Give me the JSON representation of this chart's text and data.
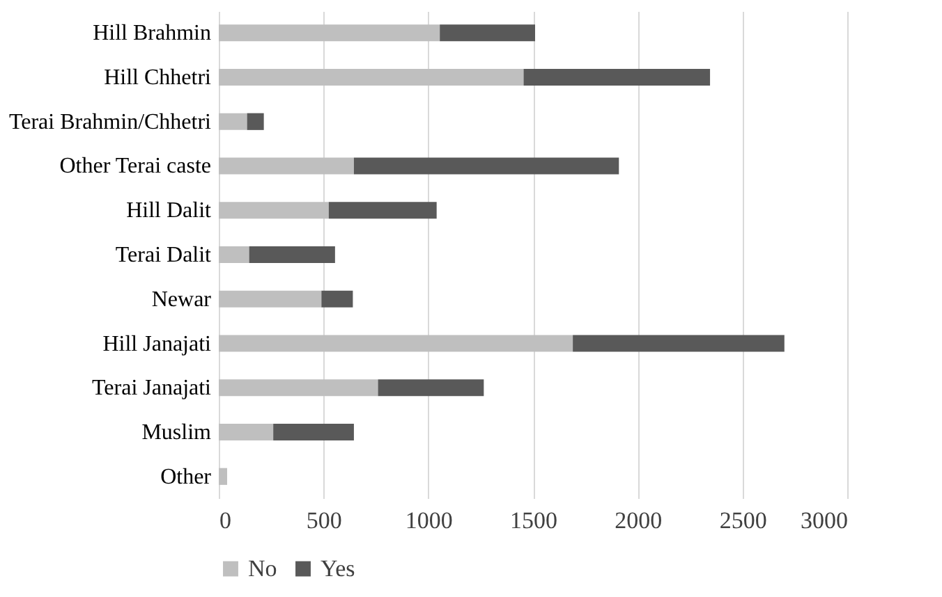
{
  "chart_data": {
    "type": "bar",
    "orientation": "horizontal",
    "stacked": true,
    "categories": [
      "Hill Brahmin",
      "Hill Chhetri",
      "Terai Brahmin/Chhetri",
      "Other Terai caste",
      "Hill Dalit",
      "Terai Dalit",
      "Newar",
      "Hill Janajati",
      "Terai Janajati",
      "Muslim",
      "Other"
    ],
    "series": [
      {
        "name": "No",
        "color": "#bfbfbf",
        "values": [
          1055,
          1455,
          135,
          645,
          525,
          145,
          490,
          1690,
          760,
          260,
          40
        ]
      },
      {
        "name": "Yes",
        "color": "#595959",
        "values": [
          455,
          890,
          80,
          1265,
          515,
          410,
          150,
          1010,
          505,
          385,
          0
        ]
      }
    ],
    "xlim": [
      0,
      3000
    ],
    "xticks": [
      0,
      500,
      1000,
      1500,
      2000,
      2500,
      3000
    ],
    "grid": "x",
    "legend": "bottom"
  }
}
